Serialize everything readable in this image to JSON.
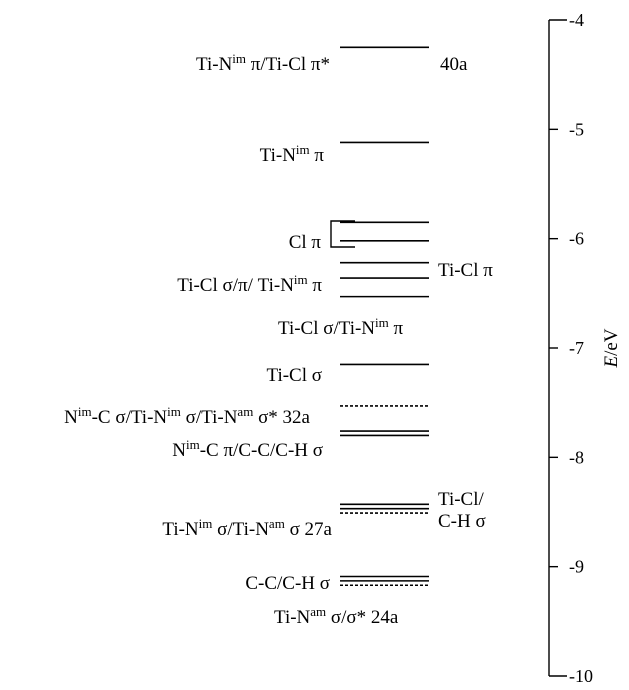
{
  "energy_axis": {
    "title_italic": "E",
    "title_unit": "/eV",
    "range": [
      -10,
      -4
    ],
    "ticks": [
      {
        "value": -4,
        "label": "-4"
      },
      {
        "value": -5,
        "label": "-5"
      },
      {
        "value": -6,
        "label": "-6"
      },
      {
        "value": -7,
        "label": "-7"
      },
      {
        "value": -8,
        "label": "-8"
      },
      {
        "value": -9,
        "label": "-9"
      },
      {
        "value": -10,
        "label": "-10"
      }
    ]
  },
  "levels": [
    {
      "energy": -4.25,
      "style": "solid"
    },
    {
      "energy": -5.12,
      "style": "solid"
    },
    {
      "energy": -5.85,
      "style": "solid"
    },
    {
      "energy": -6.02,
      "style": "solid"
    },
    {
      "energy": -6.22,
      "style": "solid"
    },
    {
      "energy": -6.36,
      "style": "solid"
    },
    {
      "energy": -6.53,
      "style": "solid"
    },
    {
      "energy": -7.15,
      "style": "solid"
    },
    {
      "energy": -7.53,
      "style": "dashed"
    },
    {
      "energy": -7.76,
      "style": "solid"
    },
    {
      "energy": -7.8,
      "style": "solid"
    },
    {
      "energy": -8.43,
      "style": "solid"
    },
    {
      "energy": -8.47,
      "style": "solid"
    },
    {
      "energy": -8.51,
      "style": "dashed"
    },
    {
      "energy": -9.09,
      "style": "solid"
    },
    {
      "energy": -9.13,
      "style": "solid"
    },
    {
      "energy": -9.17,
      "style": "dashed"
    }
  ],
  "labels": {
    "l40a": {
      "a": "Ti-N",
      "a_sup": "im",
      "b": " π/Ti-Cl π*"
    },
    "l40a_num": "40a",
    "tinpi": {
      "a": "Ti-N",
      "a_sup": "im",
      "b": " π"
    },
    "clpi": "Cl π",
    "ticl_mixed": {
      "a": "Ti-Cl σ/π/ Ti-N",
      "a_sup": "im",
      "b": " π"
    },
    "ticl_pi_right": "Ti-Cl π",
    "ticl_sigma_tin": {
      "a": "Ti-Cl σ/Ti-N",
      "a_sup": "im",
      "b": " π"
    },
    "ticl_sigma": "Ti-Cl σ",
    "l32a": {
      "a": "N",
      "a_sup": "im",
      "b": "-C σ/Ti-N",
      "b_sup": "im",
      "c": " σ/Ti-N",
      "c_sup": "am",
      "d": " σ* 32a"
    },
    "nimc": {
      "a": "N",
      "a_sup": "im",
      "b": "-C π/C-C/C-H σ"
    },
    "ticl_ch_1": "Ti-Cl/",
    "ticl_ch_2": "C-H σ",
    "l27a": {
      "a": "Ti-N",
      "a_sup": "im",
      "b": " σ/Ti-N",
      "b_sup": "am",
      "c": " σ 27a"
    },
    "cc_ch": "C-C/C-H σ",
    "l24a": {
      "a": "Ti-N",
      "a_sup": "am",
      "b": " σ/σ* 24a"
    }
  }
}
